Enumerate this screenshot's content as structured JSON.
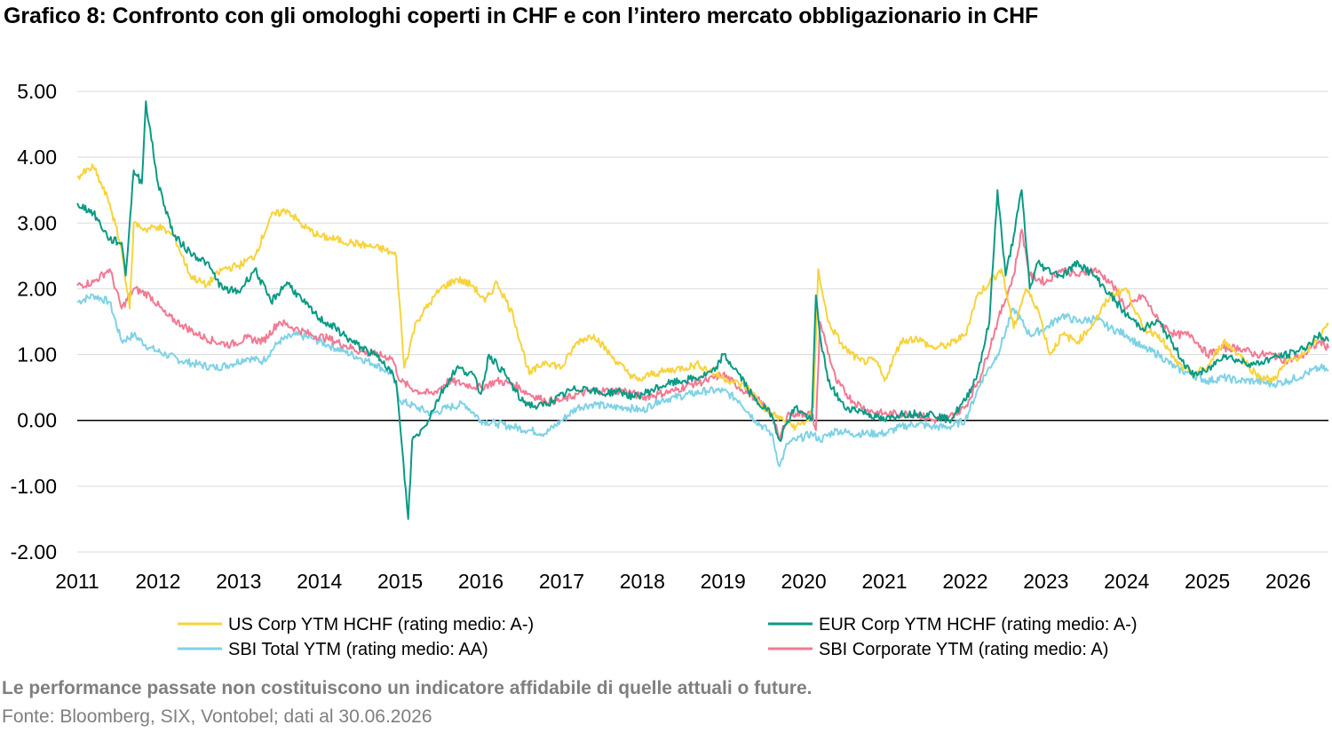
{
  "title": "Grafico 8: Confronto con gli omologhi coperti in CHF e con l’intero mercato obbligazionario in CHF",
  "footer": {
    "note": "Le performance passate non costituiscono un indicatore affidabile di quelle attuali o future.",
    "source": "Fonte: Bloomberg, SIX, Vontobel; dati al 30.06.2026"
  },
  "chart_data": {
    "type": "line",
    "title": "Grafico 8: Confronto con gli omologhi coperti in CHF e con l’intero mercato obbligazionario in CHF",
    "xlabel": "",
    "ylabel": "",
    "xlim": [
      2011.0,
      2026.5
    ],
    "ylim": [
      -2.0,
      5.0
    ],
    "y_ticks": [
      "5.00",
      "4.00",
      "3.00",
      "2.00",
      "1.00",
      "0.00",
      "-1.00",
      "-2.00"
    ],
    "y_tick_values": [
      5,
      4,
      3,
      2,
      1,
      0,
      -1,
      -2
    ],
    "x_ticks": [
      "2011",
      "2012",
      "2013",
      "2014",
      "2015",
      "2016",
      "2017",
      "2018",
      "2019",
      "2020",
      "2021",
      "2022",
      "2023",
      "2024",
      "2025",
      "2026"
    ],
    "x_tick_values": [
      2011,
      2012,
      2013,
      2014,
      2015,
      2016,
      2017,
      2018,
      2019,
      2020,
      2021,
      2022,
      2023,
      2024,
      2025,
      2026
    ],
    "grid": "horizontal",
    "legend_position": "bottom",
    "series": [
      {
        "name": "US Corp YTM HCHF (rating medio: A-)",
        "color": "#f7d33b",
        "x": [
          2011.0,
          2011.2,
          2011.4,
          2011.55,
          2011.65,
          2011.7,
          2011.85,
          2012.0,
          2012.2,
          2012.4,
          2012.6,
          2012.8,
          2013.0,
          2013.2,
          2013.4,
          2013.6,
          2013.8,
          2014.0,
          2014.2,
          2014.4,
          2014.6,
          2014.8,
          2014.95,
          2015.05,
          2015.2,
          2015.5,
          2015.7,
          2015.9,
          2016.05,
          2016.2,
          2016.4,
          2016.6,
          2016.8,
          2017.0,
          2017.2,
          2017.4,
          2017.6,
          2017.8,
          2017.95,
          2018.1,
          2018.3,
          2018.5,
          2018.7,
          2018.9,
          2019.1,
          2019.3,
          2019.5,
          2019.6,
          2019.75,
          2019.9,
          2020.05,
          2020.12,
          2020.18,
          2020.3,
          2020.5,
          2020.7,
          2020.9,
          2021.0,
          2021.2,
          2021.4,
          2021.6,
          2021.8,
          2022.0,
          2022.15,
          2022.3,
          2022.45,
          2022.6,
          2022.75,
          2022.9,
          2023.05,
          2023.2,
          2023.4,
          2023.6,
          2023.8,
          2024.0,
          2024.2,
          2024.4,
          2024.6,
          2024.8,
          2025.0,
          2025.2,
          2025.4,
          2025.6,
          2025.8,
          2026.0,
          2026.2,
          2026.4,
          2026.5
        ],
        "values": [
          3.7,
          3.85,
          3.3,
          2.6,
          1.7,
          3.0,
          2.9,
          2.95,
          2.8,
          2.2,
          2.05,
          2.3,
          2.35,
          2.5,
          3.1,
          3.2,
          2.95,
          2.8,
          2.75,
          2.7,
          2.65,
          2.6,
          2.5,
          0.8,
          1.5,
          2.0,
          2.15,
          2.05,
          1.8,
          2.1,
          1.6,
          0.7,
          0.9,
          0.8,
          1.2,
          1.3,
          1.0,
          0.75,
          0.6,
          0.7,
          0.75,
          0.8,
          0.85,
          0.7,
          0.6,
          0.5,
          0.2,
          0.1,
          0.0,
          -0.1,
          0.0,
          0.2,
          2.3,
          1.5,
          1.1,
          0.9,
          0.9,
          0.6,
          1.2,
          1.25,
          1.1,
          1.15,
          1.3,
          1.9,
          2.1,
          2.3,
          1.4,
          2.0,
          1.7,
          1.0,
          1.3,
          1.2,
          1.5,
          1.9,
          2.0,
          1.4,
          1.3,
          0.9,
          0.7,
          0.8,
          1.2,
          1.0,
          0.7,
          0.6,
          0.9,
          1.0,
          1.3,
          1.45
        ]
      },
      {
        "name": "EUR Corp YTM HCHF (rating medio: A-)",
        "color": "#0b9a85",
        "x": [
          2011.0,
          2011.2,
          2011.4,
          2011.55,
          2011.6,
          2011.7,
          2011.8,
          2011.85,
          2012.0,
          2012.2,
          2012.4,
          2012.6,
          2012.8,
          2013.0,
          2013.2,
          2013.4,
          2013.6,
          2013.8,
          2014.0,
          2014.2,
          2014.4,
          2014.6,
          2014.8,
          2014.95,
          2015.1,
          2015.15,
          2015.3,
          2015.5,
          2015.7,
          2015.9,
          2016.0,
          2016.1,
          2016.3,
          2016.5,
          2016.7,
          2016.9,
          2017.1,
          2017.3,
          2017.5,
          2017.7,
          2017.9,
          2018.1,
          2018.3,
          2018.5,
          2018.7,
          2018.9,
          2019.0,
          2019.2,
          2019.4,
          2019.6,
          2019.7,
          2019.8,
          2019.9,
          2020.0,
          2020.1,
          2020.15,
          2020.2,
          2020.3,
          2020.5,
          2020.7,
          2020.9,
          2021.0,
          2021.2,
          2021.4,
          2021.6,
          2021.8,
          2022.0,
          2022.15,
          2022.3,
          2022.4,
          2022.5,
          2022.6,
          2022.7,
          2022.8,
          2022.9,
          2023.0,
          2023.2,
          2023.4,
          2023.6,
          2023.8,
          2024.0,
          2024.2,
          2024.4,
          2024.6,
          2024.8,
          2025.0,
          2025.2,
          2025.4,
          2025.6,
          2025.8,
          2026.0,
          2026.2,
          2026.4,
          2026.5
        ],
        "values": [
          3.3,
          3.15,
          2.75,
          2.7,
          2.2,
          3.8,
          3.6,
          4.85,
          3.6,
          2.8,
          2.55,
          2.4,
          2.0,
          1.95,
          2.3,
          1.8,
          2.1,
          1.8,
          1.55,
          1.4,
          1.2,
          1.05,
          0.9,
          0.6,
          -1.5,
          -0.3,
          -0.1,
          0.4,
          0.8,
          0.7,
          0.4,
          1.0,
          0.7,
          0.3,
          0.2,
          0.3,
          0.45,
          0.5,
          0.4,
          0.45,
          0.35,
          0.45,
          0.55,
          0.6,
          0.65,
          0.75,
          1.0,
          0.7,
          0.3,
          0.1,
          -0.3,
          0.0,
          0.2,
          0.1,
          0.0,
          1.9,
          1.3,
          0.6,
          0.2,
          0.15,
          0.05,
          0.0,
          0.1,
          0.1,
          0.1,
          0.0,
          0.3,
          0.7,
          1.5,
          3.5,
          2.2,
          2.8,
          3.5,
          2.0,
          2.4,
          2.3,
          2.2,
          2.4,
          2.2,
          1.9,
          1.6,
          1.4,
          1.5,
          1.1,
          0.7,
          0.75,
          1.0,
          0.9,
          0.85,
          0.95,
          1.0,
          1.1,
          1.3,
          1.2
        ]
      },
      {
        "name": "SBI Total YTM (rating medio: AA)",
        "color": "#7fd2e6",
        "x": [
          2011.0,
          2011.2,
          2011.4,
          2011.55,
          2011.7,
          2011.9,
          2012.1,
          2012.3,
          2012.5,
          2012.7,
          2012.9,
          2013.1,
          2013.3,
          2013.5,
          2013.7,
          2013.9,
          2014.1,
          2014.3,
          2014.5,
          2014.7,
          2014.9,
          2015.0,
          2015.2,
          2015.4,
          2015.6,
          2015.8,
          2016.0,
          2016.2,
          2016.4,
          2016.6,
          2016.8,
          2017.0,
          2017.2,
          2017.4,
          2017.6,
          2017.8,
          2018.0,
          2018.2,
          2018.4,
          2018.6,
          2018.8,
          2019.0,
          2019.2,
          2019.4,
          2019.6,
          2019.7,
          2019.8,
          2019.9,
          2020.1,
          2020.2,
          2020.4,
          2020.6,
          2020.8,
          2021.0,
          2021.2,
          2021.4,
          2021.6,
          2021.8,
          2022.0,
          2022.2,
          2022.4,
          2022.6,
          2022.8,
          2023.0,
          2023.2,
          2023.4,
          2023.6,
          2023.8,
          2024.0,
          2024.2,
          2024.4,
          2024.6,
          2024.8,
          2025.0,
          2025.2,
          2025.4,
          2025.6,
          2025.8,
          2026.0,
          2026.2,
          2026.4,
          2026.5
        ],
        "values": [
          1.8,
          1.9,
          1.8,
          1.2,
          1.3,
          1.1,
          1.0,
          0.9,
          0.85,
          0.8,
          0.85,
          0.95,
          0.9,
          1.2,
          1.3,
          1.25,
          1.15,
          1.05,
          0.95,
          0.85,
          0.7,
          0.3,
          0.2,
          0.1,
          0.2,
          0.25,
          0.0,
          -0.05,
          -0.1,
          -0.15,
          -0.2,
          0.0,
          0.2,
          0.25,
          0.2,
          0.2,
          0.15,
          0.3,
          0.35,
          0.4,
          0.45,
          0.45,
          0.3,
          0.0,
          -0.2,
          -0.7,
          -0.35,
          -0.3,
          -0.2,
          -0.3,
          -0.15,
          -0.2,
          -0.2,
          -0.2,
          -0.1,
          -0.05,
          -0.1,
          -0.1,
          0.0,
          0.6,
          1.0,
          1.7,
          1.3,
          1.4,
          1.6,
          1.5,
          1.55,
          1.4,
          1.3,
          1.1,
          1.0,
          0.8,
          0.7,
          0.6,
          0.65,
          0.6,
          0.6,
          0.55,
          0.6,
          0.7,
          0.8,
          0.75
        ]
      },
      {
        "name": "SBI Corporate YTM (rating medio: A)",
        "color": "#f27a93",
        "x": [
          2011.0,
          2011.2,
          2011.4,
          2011.55,
          2011.7,
          2011.9,
          2012.1,
          2012.3,
          2012.5,
          2012.7,
          2012.9,
          2013.1,
          2013.3,
          2013.5,
          2013.7,
          2013.9,
          2014.1,
          2014.3,
          2014.5,
          2014.7,
          2014.9,
          2015.0,
          2015.2,
          2015.4,
          2015.6,
          2015.8,
          2016.0,
          2016.2,
          2016.4,
          2016.6,
          2016.8,
          2017.0,
          2017.2,
          2017.4,
          2017.6,
          2017.8,
          2018.0,
          2018.2,
          2018.4,
          2018.6,
          2018.8,
          2019.0,
          2019.2,
          2019.4,
          2019.6,
          2019.7,
          2019.8,
          2019.9,
          2020.1,
          2020.15,
          2020.2,
          2020.4,
          2020.6,
          2020.8,
          2021.0,
          2021.2,
          2021.4,
          2021.6,
          2021.8,
          2022.0,
          2022.2,
          2022.4,
          2022.6,
          2022.7,
          2022.8,
          2023.0,
          2023.2,
          2023.4,
          2023.6,
          2023.8,
          2024.0,
          2024.2,
          2024.4,
          2024.6,
          2024.8,
          2025.0,
          2025.2,
          2025.4,
          2025.6,
          2025.8,
          2026.0,
          2026.2,
          2026.4,
          2026.5
        ],
        "values": [
          2.05,
          2.1,
          2.3,
          1.7,
          2.0,
          1.9,
          1.6,
          1.45,
          1.3,
          1.2,
          1.15,
          1.25,
          1.2,
          1.5,
          1.4,
          1.3,
          1.25,
          1.15,
          1.05,
          1.0,
          0.95,
          0.6,
          0.45,
          0.4,
          0.6,
          0.55,
          0.5,
          0.6,
          0.55,
          0.4,
          0.3,
          0.3,
          0.4,
          0.45,
          0.45,
          0.45,
          0.35,
          0.4,
          0.45,
          0.55,
          0.6,
          0.7,
          0.5,
          0.35,
          0.1,
          -0.3,
          0.1,
          0.1,
          0.1,
          -0.15,
          1.5,
          0.6,
          0.3,
          0.15,
          0.1,
          0.1,
          0.1,
          0.0,
          0.05,
          0.2,
          0.7,
          1.5,
          2.2,
          2.9,
          2.2,
          2.1,
          2.3,
          2.2,
          2.3,
          2.1,
          1.7,
          1.9,
          1.5,
          1.3,
          1.3,
          1.0,
          1.1,
          1.1,
          1.0,
          1.0,
          0.9,
          1.0,
          1.2,
          1.1
        ]
      }
    ]
  }
}
